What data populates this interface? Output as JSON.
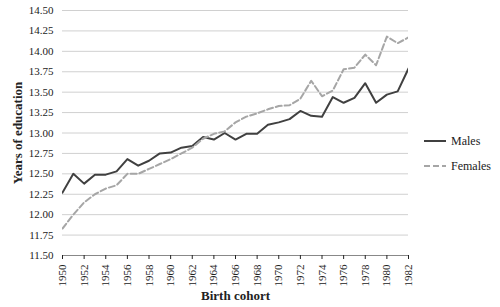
{
  "chart_data": {
    "type": "line",
    "x_label": "Birth cohort",
    "y_label": "Years of education",
    "x": [
      1950,
      1951,
      1952,
      1953,
      1954,
      1955,
      1956,
      1957,
      1958,
      1959,
      1960,
      1961,
      1962,
      1963,
      1964,
      1965,
      1966,
      1967,
      1968,
      1969,
      1970,
      1971,
      1972,
      1973,
      1974,
      1975,
      1976,
      1977,
      1978,
      1979,
      1980,
      1981,
      1982
    ],
    "series": [
      {
        "name": "Males",
        "color": "#404040",
        "line_style": "solid",
        "values": [
          12.27,
          12.5,
          12.38,
          12.49,
          12.49,
          12.53,
          12.68,
          12.6,
          12.66,
          12.75,
          12.76,
          12.82,
          12.84,
          12.95,
          12.92,
          13.0,
          12.92,
          12.99,
          12.99,
          13.1,
          13.13,
          13.17,
          13.27,
          13.21,
          13.2,
          13.44,
          13.37,
          13.43,
          13.61,
          13.37,
          13.47,
          13.51,
          13.79
        ]
      },
      {
        "name": "Females",
        "color": "#a6a6a6",
        "line_style": "dashed",
        "values": [
          11.83,
          12.0,
          12.15,
          12.25,
          12.32,
          12.36,
          12.5,
          12.5,
          12.56,
          12.62,
          12.68,
          12.75,
          12.82,
          12.93,
          12.99,
          13.02,
          13.13,
          13.2,
          13.24,
          13.29,
          13.33,
          13.34,
          13.42,
          13.64,
          13.45,
          13.52,
          13.78,
          13.8,
          13.96,
          13.83,
          14.18,
          14.1,
          14.17
        ]
      }
    ],
    "xlim": [
      1950,
      1982
    ],
    "xticks": [
      1950,
      1952,
      1954,
      1956,
      1958,
      1960,
      1962,
      1964,
      1966,
      1968,
      1970,
      1972,
      1974,
      1976,
      1978,
      1980,
      1982
    ],
    "ylim": [
      11.5,
      14.5
    ],
    "yticks": [
      {
        "value": 11.5,
        "label": "11.50"
      },
      {
        "value": 11.75,
        "label": "11.75"
      },
      {
        "value": 12,
        "label": "12.00"
      },
      {
        "value": 12.25,
        "label": "12.25"
      },
      {
        "value": 12.5,
        "label": "12.50"
      },
      {
        "value": 12.75,
        "label": "12.75"
      },
      {
        "value": 13,
        "label": "13.00"
      },
      {
        "value": 13.25,
        "label": "13.25"
      },
      {
        "value": 13.5,
        "label": "13.50"
      },
      {
        "value": 13.75,
        "label": "13.75"
      },
      {
        "value": 14,
        "label": "14.00"
      },
      {
        "value": 14.25,
        "label": "14.25"
      },
      {
        "value": 14.5,
        "label": "14.50"
      }
    ],
    "grid": true,
    "legend": "right"
  }
}
